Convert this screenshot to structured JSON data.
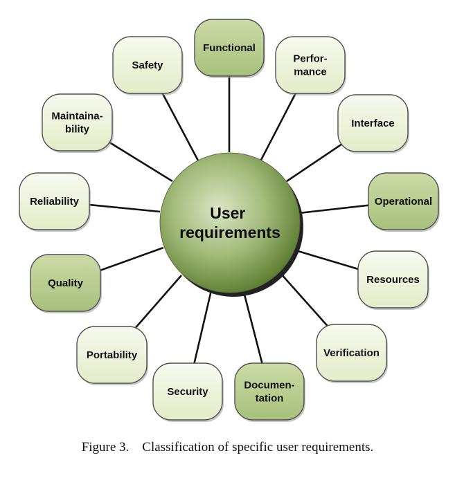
{
  "diagram": {
    "center": {
      "lines": [
        "User",
        "requirements"
      ]
    },
    "nodes": [
      {
        "id": "functional",
        "lines": [
          "Functional"
        ],
        "shade": "dark"
      },
      {
        "id": "performance",
        "lines": [
          "Perfor-",
          "mance"
        ],
        "shade": "light"
      },
      {
        "id": "interface",
        "lines": [
          "Interface"
        ],
        "shade": "light"
      },
      {
        "id": "operational",
        "lines": [
          "Operational"
        ],
        "shade": "dark"
      },
      {
        "id": "resources",
        "lines": [
          "Resources"
        ],
        "shade": "light"
      },
      {
        "id": "verification",
        "lines": [
          "Verification"
        ],
        "shade": "light"
      },
      {
        "id": "documentation",
        "lines": [
          "Documen-",
          "tation"
        ],
        "shade": "dark"
      },
      {
        "id": "security",
        "lines": [
          "Security"
        ],
        "shade": "light"
      },
      {
        "id": "portability",
        "lines": [
          "Portability"
        ],
        "shade": "light"
      },
      {
        "id": "quality",
        "lines": [
          "Quality"
        ],
        "shade": "dark"
      },
      {
        "id": "reliability",
        "lines": [
          "Reliability"
        ],
        "shade": "light"
      },
      {
        "id": "maintainability",
        "lines": [
          "Maintaina-",
          "bility"
        ],
        "shade": "light"
      },
      {
        "id": "safety",
        "lines": [
          "Safety"
        ],
        "shade": "light"
      }
    ],
    "colors": {
      "light_fill": "#eef3dd",
      "dark_fill": "#b9cd8e",
      "stroke": "#4f4f4f",
      "line": "#111111",
      "center_light": "#dbe6c4",
      "center_dark": "#5e7f33"
    }
  },
  "caption": "Figure 3.    Classification of specific user requirements."
}
